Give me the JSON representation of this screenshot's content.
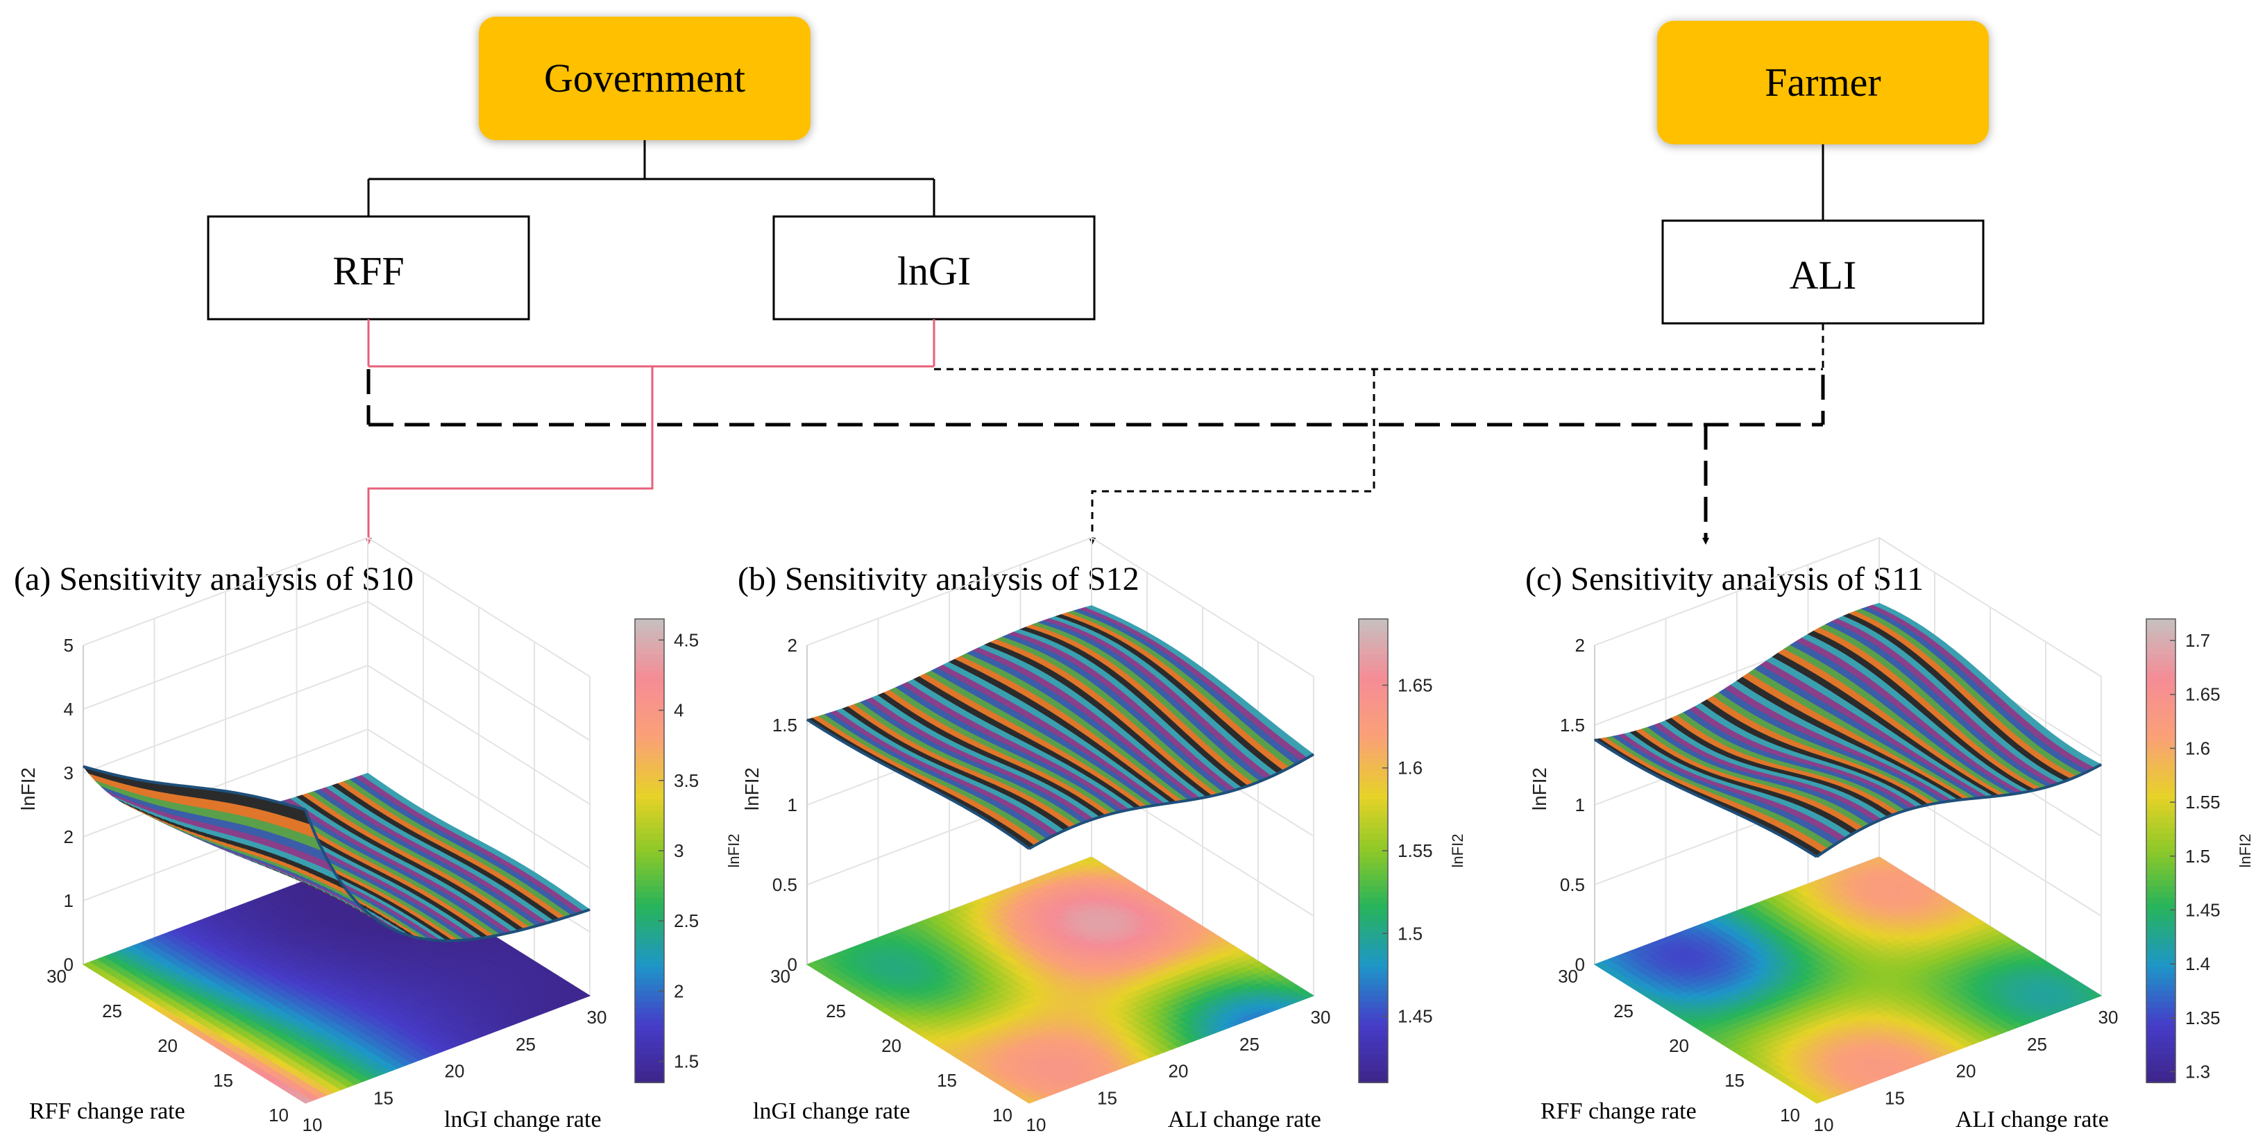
{
  "diagram": {
    "actors": [
      {
        "label": "Government",
        "color": "#FFC000"
      },
      {
        "label": "Farmer",
        "color": "#FFC000"
      }
    ],
    "factors": [
      {
        "label": "RFF"
      },
      {
        "label": "lnGI"
      },
      {
        "label": "ALI"
      }
    ],
    "links": [
      {
        "from": [
          "RFF",
          "lnGI"
        ],
        "to": "S10",
        "style": "solid",
        "color": "#E8607A"
      },
      {
        "from": [
          "lnGI",
          "ALI"
        ],
        "to": "S12",
        "style": "short-dash",
        "color": "#000000"
      },
      {
        "from": [
          "RFF",
          "ALI"
        ],
        "to": "S11",
        "style": "long-dash",
        "color": "#000000"
      }
    ]
  },
  "chart_data": [
    {
      "type": "surface",
      "title": "(a) Sensitivity analysis of S10",
      "xlabel": "lnGI change rate",
      "ylabel": "RFF change rate",
      "zlabel": "lnFI2",
      "x_ticks": [
        10,
        15,
        20,
        25,
        30
      ],
      "y_ticks": [
        10,
        15,
        20,
        25,
        30
      ],
      "z_ticks": [
        0,
        1,
        2,
        3,
        4,
        5
      ],
      "zlim": [
        0,
        5
      ],
      "colorbar": {
        "label": "lnFI2",
        "ticks": [
          1.5,
          2,
          2.5,
          3,
          3.5,
          4,
          4.5
        ],
        "range": [
          1.35,
          4.65
        ]
      },
      "surface_peak": 4.6,
      "surface_floor": 1.3
    },
    {
      "type": "surface",
      "title": "(b) Sensitivity analysis of S12",
      "xlabel": "ALI change rate",
      "ylabel": "lnGI change rate",
      "zlabel": "lnFI2",
      "x_ticks": [
        10,
        15,
        20,
        25,
        30
      ],
      "y_ticks": [
        10,
        15,
        20,
        25,
        30
      ],
      "z_ticks": [
        0,
        0.5,
        1,
        1.5,
        2
      ],
      "zlim": [
        0,
        2
      ],
      "colorbar": {
        "label": "lnFI2",
        "ticks": [
          1.45,
          1.5,
          1.55,
          1.6,
          1.65
        ],
        "range": [
          1.41,
          1.69
        ]
      },
      "surface_range": [
        1.42,
        1.69
      ]
    },
    {
      "type": "surface",
      "title": "(c) Sensitivity analysis of S11",
      "xlabel": "ALI change rate",
      "ylabel": "RFF change rate",
      "zlabel": "lnFI2",
      "x_ticks": [
        10,
        15,
        20,
        25,
        30
      ],
      "y_ticks": [
        10,
        15,
        20,
        25,
        30
      ],
      "z_ticks": [
        0,
        0.5,
        1,
        1.5,
        2
      ],
      "zlim": [
        0,
        2
      ],
      "colorbar": {
        "label": "lnFI2",
        "ticks": [
          1.3,
          1.35,
          1.4,
          1.45,
          1.5,
          1.55,
          1.6,
          1.65,
          1.7
        ],
        "range": [
          1.29,
          1.72
        ]
      },
      "surface_range": [
        1.3,
        1.71
      ]
    }
  ]
}
